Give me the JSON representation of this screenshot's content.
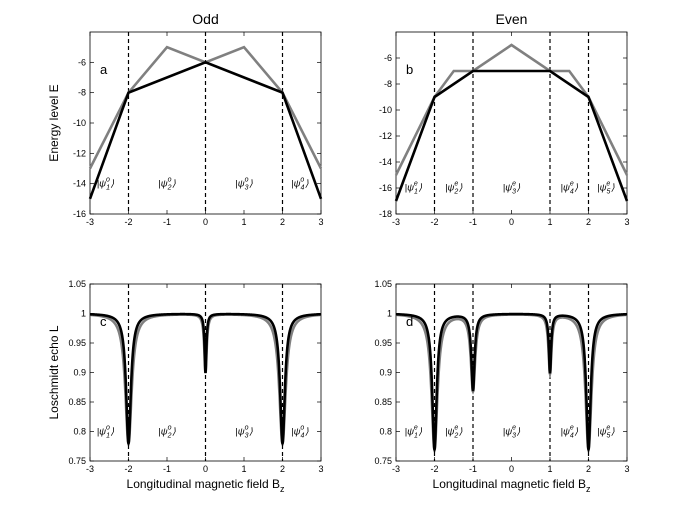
{
  "chart_data": [
    {
      "type": "line",
      "panel_letter": "a",
      "title": "Odd",
      "ylabel": "Energy level E",
      "xlabel": "",
      "xlim": [
        -3,
        3
      ],
      "ylim": [
        -16,
        -4
      ],
      "xticks": [
        -3,
        -2,
        -1,
        0,
        1,
        2,
        3
      ],
      "yticks": [
        -16,
        -14,
        -12,
        -10,
        -8,
        -6
      ],
      "vlines": [
        -2,
        0,
        2
      ],
      "states": [
        {
          "label": "|ψ1o⟩",
          "x": -2.6,
          "y": -14.2
        },
        {
          "label": "|ψ2o⟩",
          "x": -1.0,
          "y": -14.2
        },
        {
          "label": "|ψ3o⟩",
          "x": 1.0,
          "y": -14.2
        },
        {
          "label": "|ψ4o⟩",
          "x": 2.45,
          "y": -14.2
        }
      ],
      "series": [
        {
          "color": "#808080",
          "x": [
            -3,
            -2,
            -1,
            0,
            1,
            2,
            3
          ],
          "y": [
            -13,
            -8,
            -5,
            -6,
            -5,
            -8,
            -13
          ]
        },
        {
          "color": "#000000",
          "x": [
            -3,
            -2,
            0,
            2,
            3
          ],
          "y": [
            -15,
            -8,
            -6,
            -8,
            -15
          ]
        }
      ]
    },
    {
      "type": "line",
      "panel_letter": "b",
      "title": "Even",
      "ylabel": "",
      "xlabel": "",
      "xlim": [
        -3,
        3
      ],
      "ylim": [
        -18,
        -4
      ],
      "xticks": [
        -3,
        -2,
        -1,
        0,
        1,
        2,
        3
      ],
      "yticks": [
        -18,
        -16,
        -14,
        -12,
        -10,
        -8,
        -6
      ],
      "vlines": [
        -2,
        -1,
        1,
        2
      ],
      "states": [
        {
          "label": "|ψ1e⟩",
          "x": -2.55,
          "y": -16.2
        },
        {
          "label": "|ψ2e⟩",
          "x": -1.5,
          "y": -16.2
        },
        {
          "label": "|ψ3e⟩",
          "x": 0.0,
          "y": -16.2
        },
        {
          "label": "|ψ4e⟩",
          "x": 1.5,
          "y": -16.2
        },
        {
          "label": "|ψ5e⟩",
          "x": 2.45,
          "y": -16.2
        }
      ],
      "series": [
        {
          "color": "#808080",
          "x": [
            -3,
            -2,
            -1.5,
            -1,
            0,
            1,
            1.5,
            2,
            3
          ],
          "y": [
            -15,
            -9,
            -7,
            -7,
            -5,
            -7,
            -7,
            -9,
            -15
          ]
        },
        {
          "color": "#000000",
          "x": [
            -3,
            -2,
            -1,
            1,
            2,
            3
          ],
          "y": [
            -17,
            -9,
            -7,
            -7,
            -9,
            -17
          ]
        }
      ]
    },
    {
      "type": "line",
      "panel_letter": "c",
      "title": "",
      "ylabel": "Loschmidt echo L",
      "xlabel": "Longitudinal magnetic field B",
      "xlabel_sub": "z",
      "xlim": [
        -3,
        3
      ],
      "ylim": [
        0.75,
        1.05
      ],
      "xticks": [
        -3,
        -2,
        -1,
        0,
        1,
        2,
        3
      ],
      "yticks": [
        0.75,
        0.8,
        0.85,
        0.9,
        0.95,
        1,
        1.05
      ],
      "vlines": [
        -2,
        0,
        2
      ],
      "states": [
        {
          "label": "|ψ1o⟩",
          "x": -2.6,
          "y": 0.795
        },
        {
          "label": "|ψ2o⟩",
          "x": -1.0,
          "y": 0.795
        },
        {
          "label": "|ψ3o⟩",
          "x": 1.0,
          "y": 0.795
        },
        {
          "label": "|ψ4o⟩",
          "x": 2.45,
          "y": 0.795
        }
      ],
      "dips": [
        {
          "x0": -2,
          "depth": 0.22,
          "width": 0.075
        },
        {
          "x0": 0,
          "depth": 0.1,
          "width": 0.028
        },
        {
          "x0": 2,
          "depth": 0.22,
          "width": 0.075
        }
      ],
      "series": [
        {
          "color": "#808080",
          "width_scale": 1.35
        },
        {
          "color": "#000000",
          "width_scale": 1.0
        }
      ]
    },
    {
      "type": "line",
      "panel_letter": "d",
      "title": "",
      "ylabel": "",
      "xlabel": "Longitudinal magnetic field B",
      "xlabel_sub": "z",
      "xlim": [
        -3,
        3
      ],
      "ylim": [
        0.75,
        1.05
      ],
      "xticks": [
        -3,
        -2,
        -1,
        0,
        1,
        2,
        3
      ],
      "yticks": [
        0.75,
        0.8,
        0.85,
        0.9,
        0.95,
        1,
        1.05
      ],
      "vlines": [
        -2,
        -1,
        1,
        2
      ],
      "states": [
        {
          "label": "|ψ1e⟩",
          "x": -2.55,
          "y": 0.795
        },
        {
          "label": "|ψ2e⟩",
          "x": -1.5,
          "y": 0.795
        },
        {
          "label": "|ψ3e⟩",
          "x": 0.0,
          "y": 0.795
        },
        {
          "label": "|ψ4e⟩",
          "x": 1.5,
          "y": 0.795
        },
        {
          "label": "|ψ5e⟩",
          "x": 2.45,
          "y": 0.795
        }
      ],
      "dips": [
        {
          "x0": -2,
          "depth": 0.23,
          "width": 0.07
        },
        {
          "x0": -1,
          "depth": 0.13,
          "width": 0.05
        },
        {
          "x0": 1,
          "depth": 0.1,
          "width": 0.035
        },
        {
          "x0": 2,
          "depth": 0.23,
          "width": 0.07
        }
      ],
      "series": [
        {
          "color": "#808080",
          "width_scale": 1.35
        },
        {
          "color": "#000000",
          "width_scale": 1.0
        }
      ]
    }
  ]
}
